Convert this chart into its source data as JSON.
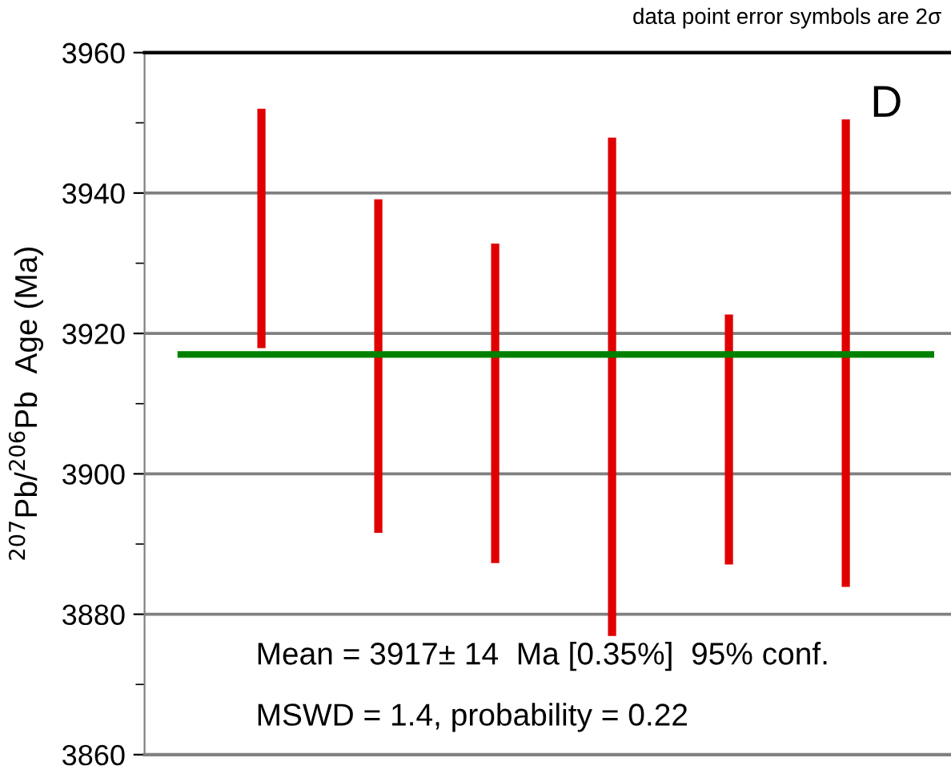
{
  "chart_data": {
    "type": "bar",
    "ylabel": "$^{207}$Pb/$^{206}$Pb  Age (Ma)",
    "categories": [
      null,
      null,
      null,
      null,
      null,
      null
    ],
    "base": [
      3917.9,
      3891.6,
      3887.3,
      3876.9,
      3887.1,
      3883.9
    ],
    "values": [
      34.1,
      47.5,
      45.5,
      71.0,
      35.6,
      66.6
    ],
    "color": "#e00000",
    "ylim": [
      3860,
      3960
    ],
    "yticks": [
      3860,
      3880,
      3900,
      3920,
      3940,
      3960
    ],
    "grid": "y",
    "tick_labels": "y",
    "ref_lines": [
      {
        "axis": "y",
        "value": 3917,
        "color": "#008000"
      }
    ],
    "annotations": [
      "data point error symbols are 2σ",
      "D",
      "Mean = 3917± 14  Ma [0.35%]  95% conf.",
      "MSWD = 1.4, probability = 0.22"
    ]
  }
}
